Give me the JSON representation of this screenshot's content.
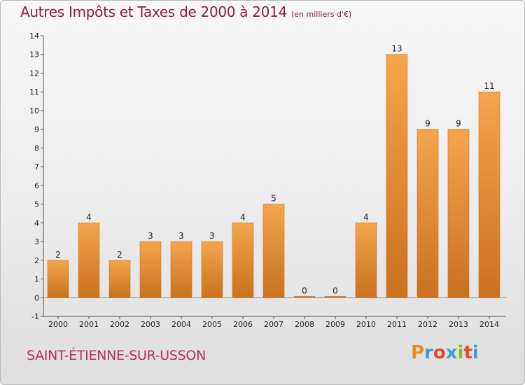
{
  "page": {
    "title": "Autres Impôts et Taxes de 2000 à 2014",
    "subtitle": "(en milliers d'€)",
    "commune": "SAINT-ÉTIENNE-SUR-USSON",
    "logo_text": "Proxiti",
    "logo_colors": [
      "#e98b1c",
      "#3aa0d8",
      "#e24a2b",
      "#3aa0d8",
      "#89b629",
      "#e24a2b",
      "#3aa0d8"
    ]
  },
  "colors": {
    "bar_top": "#f5a54c",
    "bar_bottom": "#c9711e",
    "title": "#8b1d46",
    "commune": "#b5305f"
  },
  "chart_data": {
    "type": "bar",
    "title": "Autres Impôts et Taxes de 2000 à 2014",
    "subtitle": "(en milliers d'€)",
    "categories": [
      "2000",
      "2001",
      "2002",
      "2003",
      "2004",
      "2005",
      "2006",
      "2007",
      "2008",
      "2009",
      "2010",
      "2011",
      "2012",
      "2013",
      "2014"
    ],
    "values": [
      2,
      4,
      2,
      3,
      3,
      3,
      4,
      5,
      0,
      0,
      4,
      13,
      9,
      9,
      11
    ],
    "data_labels": [
      "2",
      "4",
      "2",
      "3",
      "3",
      "3",
      "4",
      "5",
      "0",
      "0",
      "4",
      "13",
      "9",
      "9",
      "11"
    ],
    "ylim": [
      -1,
      14
    ],
    "yticks": [
      "-1",
      "0",
      "1",
      "2",
      "3",
      "4",
      "5",
      "6",
      "7",
      "8",
      "9",
      "10",
      "11",
      "12",
      "13",
      "14"
    ],
    "xlabel": "",
    "ylabel": "",
    "grid": false,
    "legend": "none"
  }
}
